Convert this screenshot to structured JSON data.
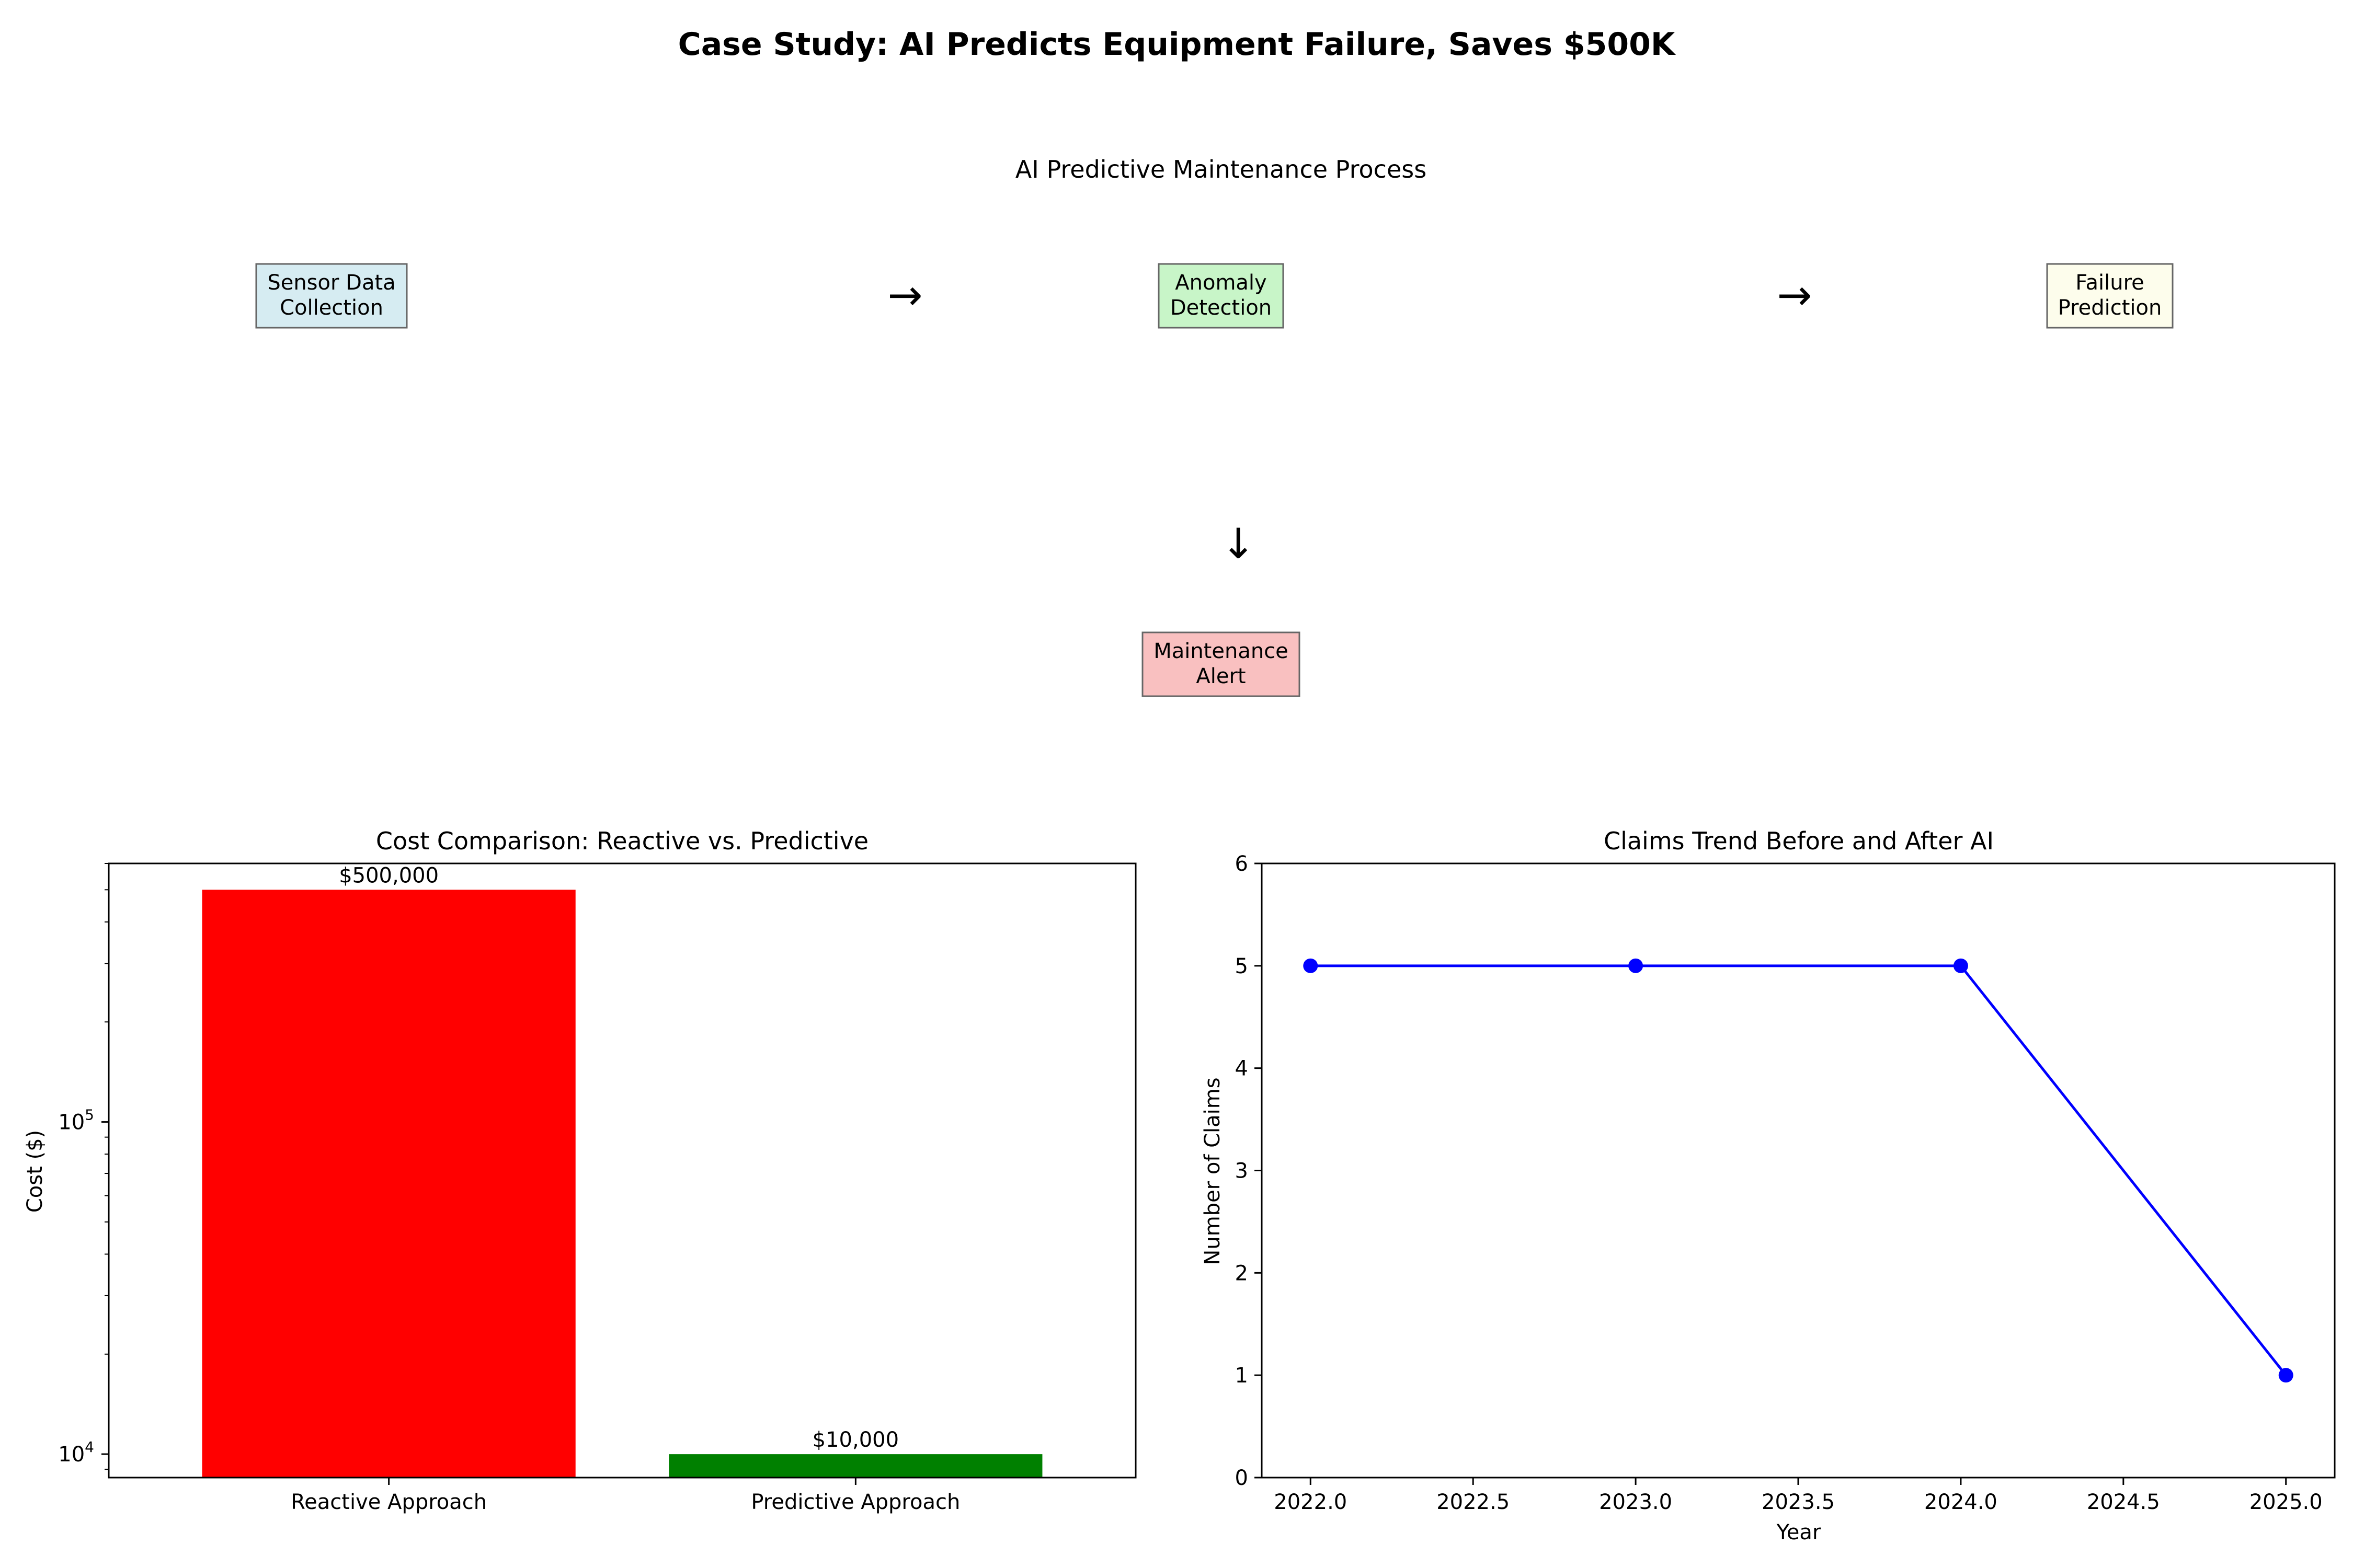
{
  "page": {
    "title": "Case Study: AI Predicts Equipment Failure, Saves $500K"
  },
  "process": {
    "title": "AI Predictive Maintenance Process",
    "steps": [
      {
        "line1": "Sensor Data",
        "line2": "Collection",
        "color": "#d6ecf2"
      },
      {
        "line1": "Anomaly",
        "line2": "Detection",
        "color": "#c8f5c8"
      },
      {
        "line1": "Failure",
        "line2": "Prediction",
        "color": "#fdfdec"
      },
      {
        "line1": "Maintenance",
        "line2": "Alert",
        "color": "#f9c0c0"
      }
    ],
    "arrows": {
      "right": "→",
      "down": "↓"
    }
  },
  "chart_data": [
    {
      "type": "bar",
      "title": "Cost Comparison: Reactive vs. Predictive",
      "xlabel": "",
      "ylabel": "Cost ($)",
      "yscale": "log",
      "ylim": [
        8500,
        600000
      ],
      "yticks": [
        {
          "value": 10000,
          "base": "10",
          "exp": "4"
        },
        {
          "value": 100000,
          "base": "10",
          "exp": "5"
        }
      ],
      "categories": [
        "Reactive Approach",
        "Predictive Approach"
      ],
      "values": [
        500000,
        10000
      ],
      "data_labels": [
        "$500,000",
        "$10,000"
      ],
      "colors": [
        "#ff0000",
        "#008000"
      ],
      "grid": false
    },
    {
      "type": "line",
      "title": "Claims Trend Before and After AI",
      "xlabel": "Year",
      "ylabel": "Number of Claims",
      "xlim": [
        2021.85,
        2025.15
      ],
      "ylim": [
        0,
        6
      ],
      "xticks": [
        "2022.0",
        "2022.5",
        "2023.0",
        "2023.5",
        "2024.0",
        "2024.5",
        "2025.0"
      ],
      "yticks": [
        "0",
        "1",
        "2",
        "3",
        "4",
        "5",
        "6"
      ],
      "x": [
        2022,
        2023,
        2024,
        2025
      ],
      "series": [
        {
          "values": [
            5,
            5,
            5,
            1
          ],
          "color": "#0000ff",
          "marker": "circle"
        }
      ],
      "grid": false
    }
  ]
}
